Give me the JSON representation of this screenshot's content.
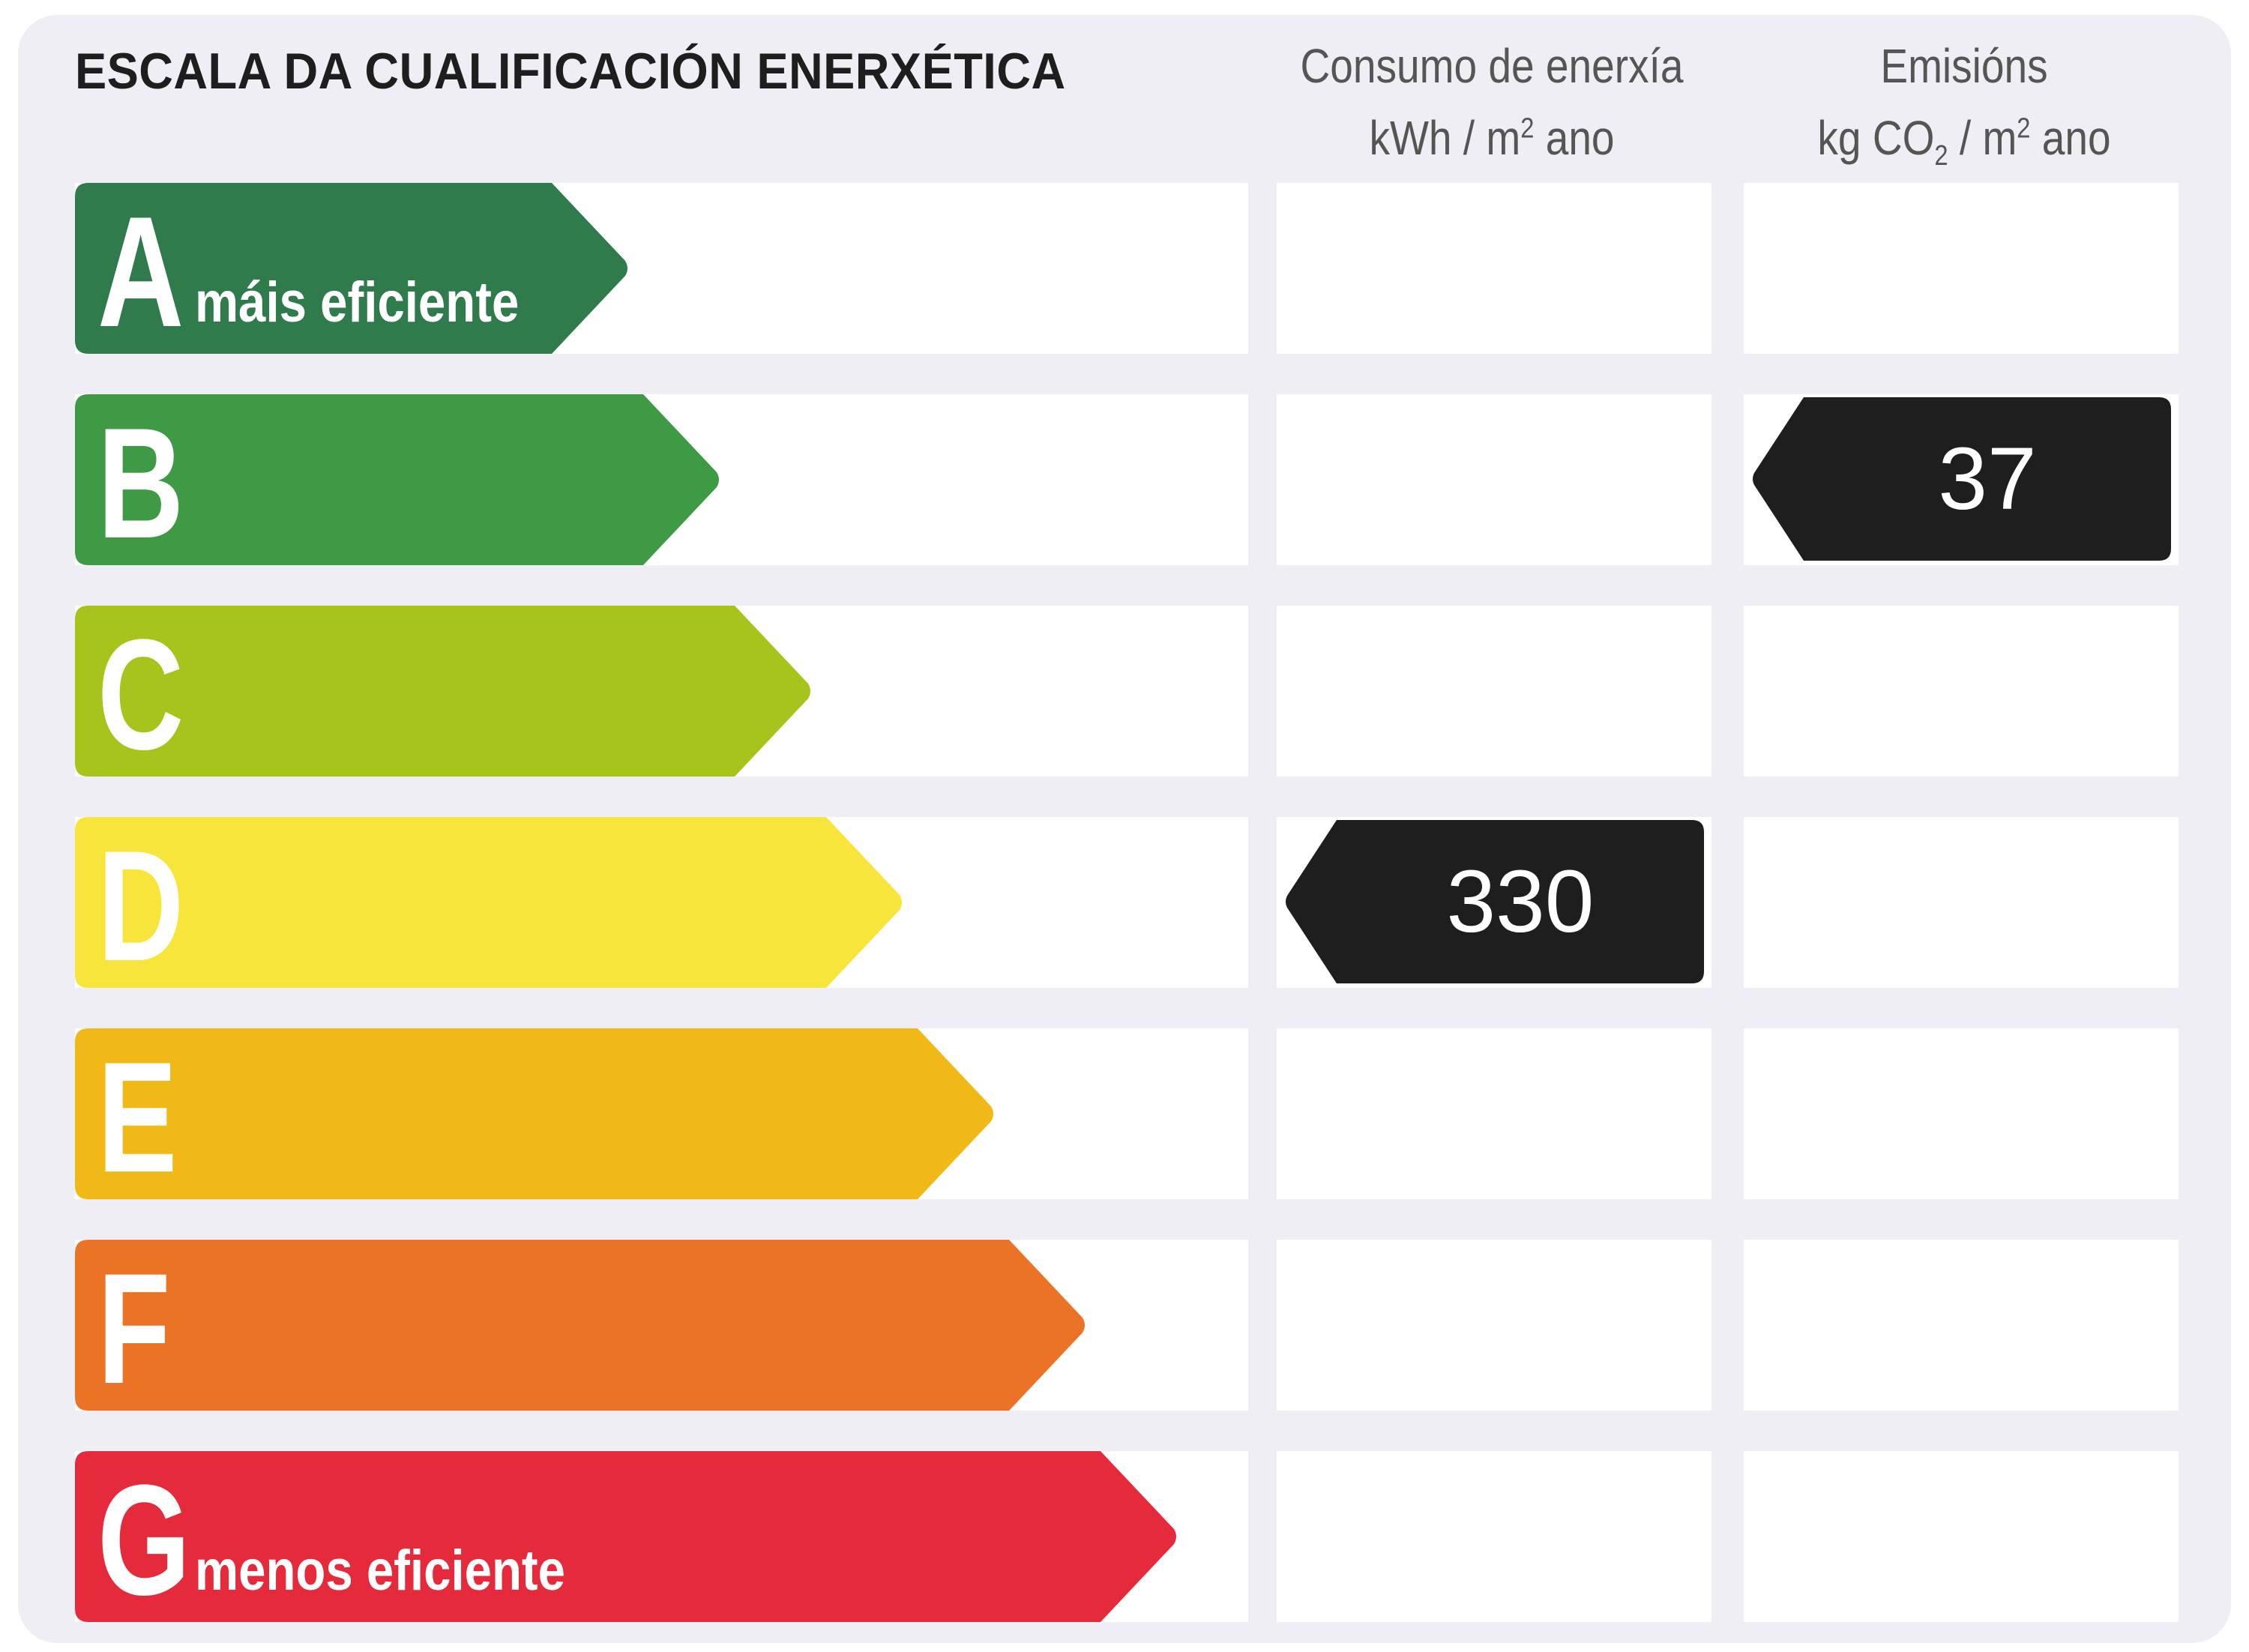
{
  "title": "ESCALA DA CUALIFICACIÓN ENERXÉTICA",
  "columns": {
    "consumption": {
      "line1": "Consumo de enerxía",
      "line2_prefix": "kWh / m",
      "line2_sup": "2",
      "line2_suffix": " ano"
    },
    "emissions": {
      "line1": "Emisións",
      "line2_prefix": "kg CO",
      "line2_sub": "2",
      "line2_mid": " / m",
      "line2_sup": "2",
      "line2_suffix": " ano"
    }
  },
  "classes": [
    {
      "letter": "A",
      "label": "máis eficiente",
      "color": "#2f7b4c"
    },
    {
      "letter": "B",
      "label": "",
      "color": "#3f9a45"
    },
    {
      "letter": "C",
      "label": "",
      "color": "#a6c41b"
    },
    {
      "letter": "D",
      "label": "",
      "color": "#f7e53c"
    },
    {
      "letter": "E",
      "label": "",
      "color": "#f0b918"
    },
    {
      "letter": "F",
      "label": "",
      "color": "#eb7325"
    },
    {
      "letter": "G",
      "label": "menos eficiente",
      "color": "#e52a3c"
    }
  ],
  "indicators": {
    "consumption": {
      "value": "330",
      "class": "D",
      "color": "#1e1e1e"
    },
    "emissions": {
      "value": "37",
      "class": "B",
      "color": "#1e1e1e"
    }
  }
}
